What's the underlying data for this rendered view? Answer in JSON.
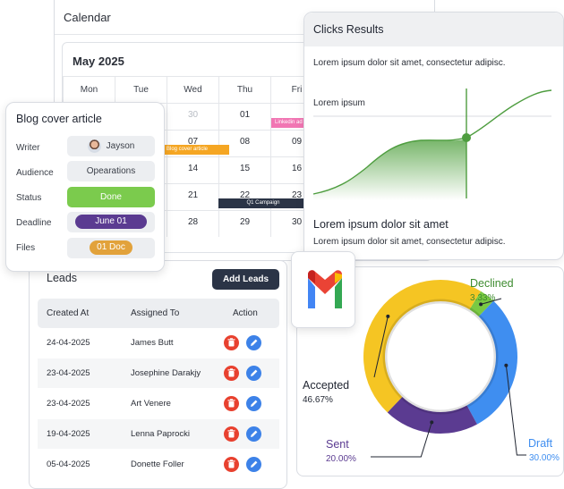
{
  "calendar": {
    "title": "Calendar",
    "month": "May 2025",
    "weekdays": [
      "Mon",
      "Tue",
      "Wed",
      "Thu",
      "Fri"
    ],
    "rows": [
      [
        "",
        "",
        "30",
        "01",
        ""
      ],
      [
        "",
        "",
        "07",
        "08",
        "09"
      ],
      [
        "",
        "",
        "14",
        "15",
        "16"
      ],
      [
        "",
        "",
        "21",
        "22",
        "23"
      ],
      [
        "",
        "",
        "28",
        "29",
        "30"
      ]
    ],
    "events": {
      "linkedin": "Linkedin ad",
      "blog": "Blog cover article",
      "campaign": "Q1 Campaign"
    }
  },
  "blog": {
    "title": "Blog cover article",
    "writer_label": "Writer",
    "writer": "Jayson",
    "audience_label": "Audience",
    "audience": "Opearations",
    "status_label": "Status",
    "status": "Done",
    "deadline_label": "Deadline",
    "deadline": "June 01",
    "files_label": "Files",
    "files": "01 Doc",
    "colors": {
      "done": "#7bcb4d",
      "deadline": "#5b3b91",
      "files": "#e2a23b"
    }
  },
  "clicks": {
    "title": "Clicks Results",
    "text1": "Lorem ipsum dolor sit amet, consectetur adipisc.",
    "line_label": "Lorem ipsum",
    "subtitle": "Lorem ipsum dolor sit amet",
    "text2": "Lorem ipsum dolor sit amet, consectetur adipisc."
  },
  "leads": {
    "title": "Leads",
    "add_button": "Add Leads",
    "columns": [
      "Created At",
      "Assigned To",
      "Action"
    ],
    "rows": [
      {
        "date": "24-04-2025",
        "name": "James Butt"
      },
      {
        "date": "23-04-2025",
        "name": "Josephine Darakjy"
      },
      {
        "date": "23-04-2025",
        "name": "Art Venere"
      },
      {
        "date": "19-04-2025",
        "name": "Lenna Paprocki"
      },
      {
        "date": "05-04-2025",
        "name": "Donette Foller"
      }
    ]
  },
  "gmail": {
    "icon": "gmail-icon"
  },
  "chart_data": {
    "type": "pie",
    "variant": "donut",
    "categories": [
      "Declined",
      "Draft",
      "Sent",
      "Accepted"
    ],
    "values": [
      3.33,
      30.0,
      20.0,
      46.67
    ],
    "labels": [
      "3.33%",
      "30.00%",
      "20.00%",
      "46.67%"
    ],
    "colors": [
      "#7ac943",
      "#3f8ef0",
      "#5b3b91",
      "#f5c523"
    ]
  }
}
